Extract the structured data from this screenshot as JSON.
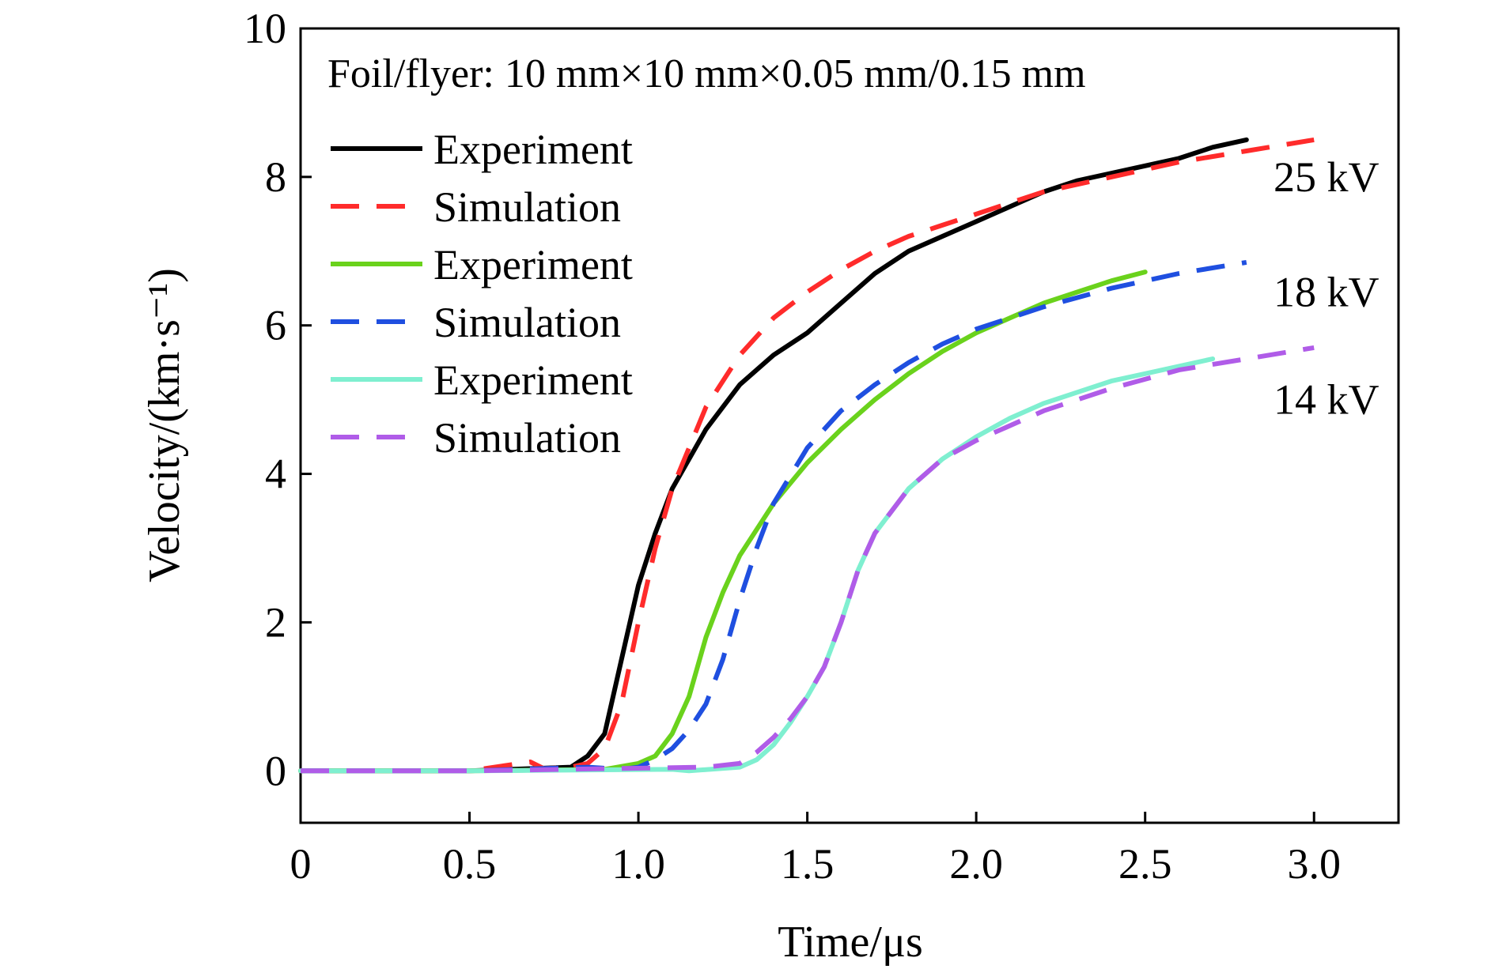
{
  "chart_data": {
    "type": "line",
    "title": "",
    "annotation": "Foil/flyer: 10 mm×10 mm×0.05 mm/0.15 mm",
    "xlabel": "Time/μs",
    "ylabel": "Velocity/(km·s⁻¹)",
    "xlim": [
      0,
      3.25
    ],
    "ylim": [
      -0.7,
      10
    ],
    "xticks": [
      {
        "value": 0,
        "label": "0"
      },
      {
        "value": 0.5,
        "label": "0.5"
      },
      {
        "value": 1.0,
        "label": "1.0"
      },
      {
        "value": 1.5,
        "label": "1.5"
      },
      {
        "value": 2.0,
        "label": "2.0"
      },
      {
        "value": 2.5,
        "label": "2.5"
      },
      {
        "value": 3.0,
        "label": "3.0"
      }
    ],
    "yticks": [
      {
        "value": 0,
        "label": "0"
      },
      {
        "value": 2,
        "label": "2"
      },
      {
        "value": 4,
        "label": "4"
      },
      {
        "value": 6,
        "label": "6"
      },
      {
        "value": 8,
        "label": "8"
      },
      {
        "value": 10,
        "label": "10"
      }
    ],
    "grid": false,
    "legend_position": "top-left",
    "series": [
      {
        "name": "Experiment",
        "group": "25 kV",
        "color": "#000000",
        "dash": "solid",
        "x": [
          0,
          0.5,
          0.8,
          0.85,
          0.9,
          0.95,
          1.0,
          1.05,
          1.1,
          1.2,
          1.3,
          1.4,
          1.5,
          1.6,
          1.7,
          1.8,
          1.9,
          2.0,
          2.1,
          2.2,
          2.3,
          2.4,
          2.5,
          2.6,
          2.7,
          2.8
        ],
        "y": [
          0,
          0,
          0.05,
          0.2,
          0.5,
          1.5,
          2.5,
          3.2,
          3.8,
          4.6,
          5.2,
          5.6,
          5.9,
          6.3,
          6.7,
          7.0,
          7.2,
          7.4,
          7.6,
          7.8,
          7.95,
          8.05,
          8.15,
          8.25,
          8.4,
          8.5
        ]
      },
      {
        "name": "Simulation",
        "group": "25 kV",
        "color": "#ff2b2b",
        "dash": "dashed",
        "x": [
          0,
          0.5,
          0.68,
          0.72,
          0.8,
          0.85,
          0.9,
          0.95,
          1.0,
          1.05,
          1.1,
          1.2,
          1.3,
          1.4,
          1.5,
          1.6,
          1.7,
          1.8,
          1.9,
          2.0,
          2.2,
          2.4,
          2.6,
          2.8,
          3.0
        ],
        "y": [
          0,
          0,
          0.12,
          0.03,
          0.05,
          0.1,
          0.3,
          0.9,
          2.0,
          3.0,
          3.8,
          4.9,
          5.6,
          6.1,
          6.45,
          6.75,
          7.0,
          7.2,
          7.35,
          7.5,
          7.8,
          8.0,
          8.2,
          8.35,
          8.5
        ]
      },
      {
        "name": "Experiment",
        "group": "18 kV",
        "color": "#6ad21c",
        "dash": "solid",
        "x": [
          0,
          0.5,
          0.9,
          1.0,
          1.05,
          1.1,
          1.15,
          1.2,
          1.25,
          1.3,
          1.4,
          1.5,
          1.6,
          1.7,
          1.8,
          1.9,
          2.0,
          2.1,
          2.2,
          2.3,
          2.4,
          2.5
        ],
        "y": [
          0,
          0,
          0.02,
          0.1,
          0.2,
          0.5,
          1.0,
          1.8,
          2.4,
          2.9,
          3.6,
          4.15,
          4.6,
          5.0,
          5.35,
          5.65,
          5.9,
          6.1,
          6.3,
          6.45,
          6.6,
          6.72
        ]
      },
      {
        "name": "Simulation",
        "group": "18 kV",
        "color": "#1f4fe0",
        "dash": "dashed",
        "x": [
          0,
          0.5,
          0.85,
          0.95,
          1.0,
          1.05,
          1.1,
          1.15,
          1.2,
          1.25,
          1.3,
          1.35,
          1.4,
          1.5,
          1.6,
          1.7,
          1.8,
          1.9,
          2.0,
          2.2,
          2.4,
          2.6,
          2.8
        ],
        "y": [
          0,
          0,
          0.05,
          0.02,
          0.05,
          0.15,
          0.3,
          0.55,
          0.9,
          1.5,
          2.3,
          3.0,
          3.6,
          4.35,
          4.85,
          5.2,
          5.5,
          5.75,
          5.95,
          6.25,
          6.5,
          6.7,
          6.85
        ]
      },
      {
        "name": "Experiment",
        "group": "14 kV",
        "color": "#7fefd0",
        "dash": "solid",
        "x": [
          0,
          0.5,
          1.1,
          1.15,
          1.3,
          1.35,
          1.4,
          1.45,
          1.5,
          1.55,
          1.6,
          1.65,
          1.7,
          1.8,
          1.9,
          2.0,
          2.1,
          2.2,
          2.3,
          2.4,
          2.5,
          2.6,
          2.7
        ],
        "y": [
          0,
          0,
          0.02,
          0,
          0.05,
          0.15,
          0.35,
          0.65,
          1.0,
          1.4,
          2.0,
          2.7,
          3.2,
          3.8,
          4.2,
          4.5,
          4.75,
          4.95,
          5.1,
          5.25,
          5.35,
          5.45,
          5.55
        ]
      },
      {
        "name": "Simulation",
        "group": "14 kV",
        "color": "#b05ce8",
        "dash": "dashed",
        "x": [
          0,
          0.5,
          1.2,
          1.3,
          1.35,
          1.4,
          1.45,
          1.5,
          1.55,
          1.6,
          1.65,
          1.7,
          1.8,
          1.9,
          2.0,
          2.2,
          2.4,
          2.6,
          2.8,
          3.0
        ],
        "y": [
          0,
          0,
          0.05,
          0.1,
          0.25,
          0.45,
          0.7,
          1.0,
          1.4,
          2.0,
          2.7,
          3.2,
          3.8,
          4.2,
          4.45,
          4.85,
          5.15,
          5.4,
          5.55,
          5.7
        ]
      }
    ],
    "series_labels": [
      {
        "text": "25 kV",
        "x": 2.88,
        "y": 8.0
      },
      {
        "text": "18 kV",
        "x": 2.88,
        "y": 6.45
      },
      {
        "text": "14 kV",
        "x": 2.88,
        "y": 5.0
      }
    ]
  }
}
